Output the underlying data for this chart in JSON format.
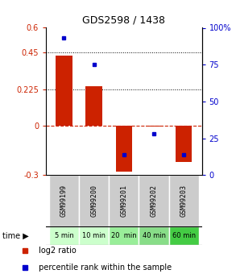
{
  "title": "GDS2598 / 1438",
  "samples": [
    "GSM99199",
    "GSM99200",
    "GSM99201",
    "GSM99202",
    "GSM99203"
  ],
  "time_labels": [
    "5 min",
    "10 min",
    "20  min",
    "40 min",
    "60 min"
  ],
  "log2_ratios": [
    0.43,
    0.245,
    -0.28,
    -0.005,
    -0.22
  ],
  "percentile_ranks": [
    93,
    75,
    14,
    28,
    14
  ],
  "bar_color": "#cc2200",
  "dot_color": "#0000cc",
  "ylim_left": [
    -0.3,
    0.6
  ],
  "ylim_right": [
    0,
    100
  ],
  "yticks_left": [
    -0.3,
    0.0,
    0.225,
    0.45,
    0.6
  ],
  "ytick_labels_left": [
    "-0.3",
    "0",
    "0.225",
    "0.45",
    "0.6"
  ],
  "yticks_right": [
    0,
    25,
    50,
    75,
    100
  ],
  "ytick_labels_right": [
    "0",
    "25",
    "50",
    "75",
    "100%"
  ],
  "hlines": [
    0.45,
    0.225
  ],
  "time_colors": [
    "#ccffcc",
    "#ccffcc",
    "#99ee99",
    "#88dd88",
    "#44cc44"
  ],
  "sample_bg": "#cccccc",
  "bg_white": "#ffffff"
}
